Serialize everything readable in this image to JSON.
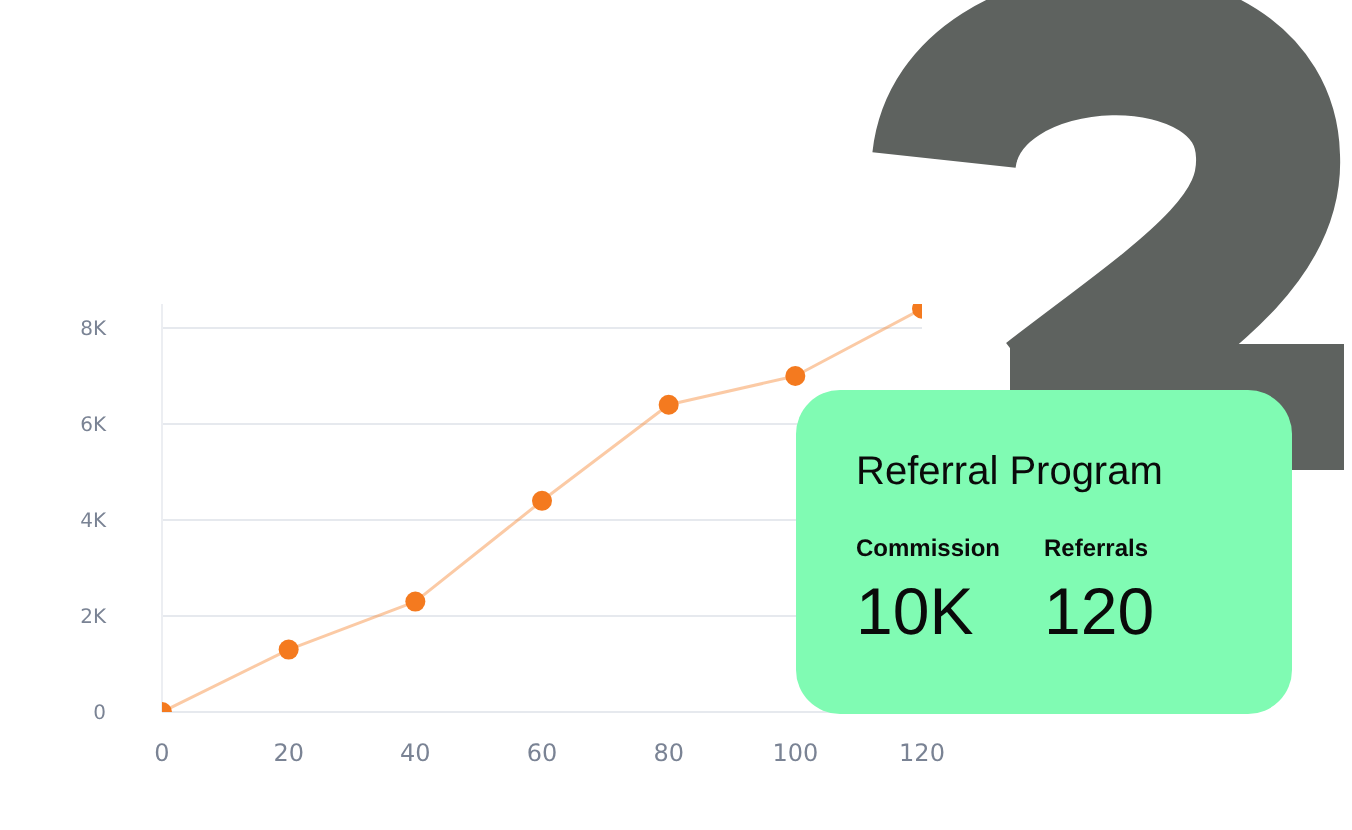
{
  "chart_data": [
    {
      "type": "line",
      "x": [
        0,
        20,
        40,
        60,
        80,
        100,
        120
      ],
      "series": [
        {
          "color": "#f47a1f",
          "values": [
            0,
            1300,
            2300,
            4400,
            6400,
            7000,
            8400
          ]
        }
      ],
      "xlim": [
        0,
        120
      ],
      "xticks": [
        0,
        20,
        40,
        60,
        80,
        100,
        120
      ],
      "ylim": [
        0,
        8500
      ],
      "yticks": [
        0,
        {
          "value": 2000,
          "label": "2K"
        },
        {
          "value": 4000,
          "label": "4K"
        },
        {
          "value": 6000,
          "label": "6K"
        },
        {
          "value": 8000,
          "label": "8K"
        }
      ],
      "grid": "y",
      "marker": "circle",
      "line_style": "solid"
    },
    {
      "type": "other",
      "title": "Referral Program",
      "annotations": [
        "Commission",
        "10K",
        "Referrals",
        "120"
      ]
    }
  ]
}
